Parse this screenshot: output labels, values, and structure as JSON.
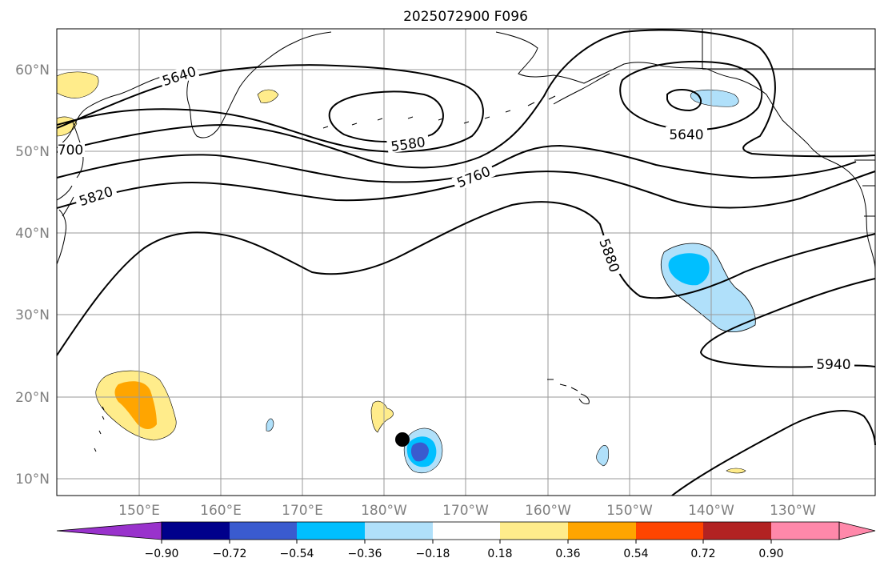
{
  "title": "2025072900 F096",
  "lat_labels": [
    "60°N",
    "50°N",
    "40°N",
    "30°N",
    "20°N",
    "10°N"
  ],
  "lon_labels": [
    "150°E",
    "160°E",
    "170°E",
    "180°W",
    "170°W",
    "160°W",
    "150°W",
    "140°W",
    "130°W"
  ],
  "contour_labels": [
    "5640",
    "5580",
    "5640",
    "5760",
    "5820",
    "5880",
    "5940",
    "700"
  ],
  "colorbar": {
    "ticks": [
      "−0.90",
      "−0.72",
      "−0.54",
      "−0.36",
      "−0.18",
      "0.18",
      "0.36",
      "0.54",
      "0.72",
      "0.90"
    ],
    "colors": [
      "#9932cc",
      "#00008b",
      "#3a5bcf",
      "#00bfff",
      "#b0e0fa",
      "#ffffff",
      "#ffec8b",
      "#ffa500",
      "#ff4500",
      "#b22222",
      "#ff88aa"
    ]
  },
  "marker": "storm-position"
}
